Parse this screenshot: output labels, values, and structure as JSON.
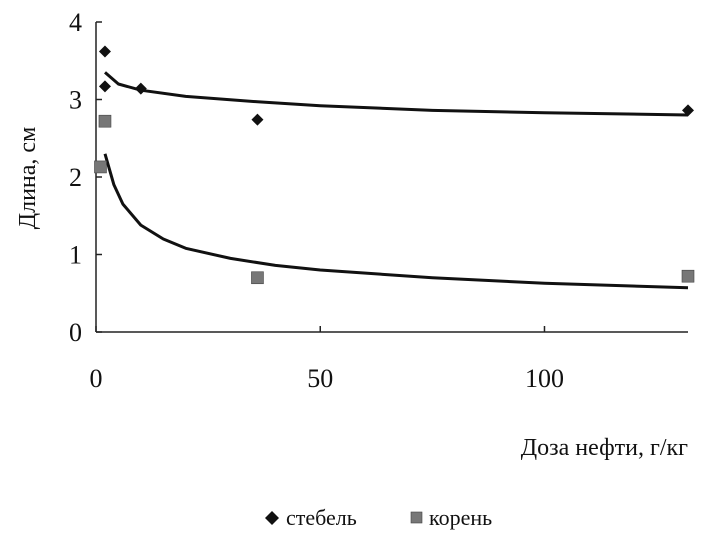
{
  "chart_data": {
    "type": "scatter",
    "xlabel": "Доза нефти, г/кг",
    "ylabel": "Длина, см",
    "xlim": [
      0,
      132
    ],
    "ylim": [
      0,
      4
    ],
    "x_ticks": [
      "0",
      "50",
      "100"
    ],
    "y_ticks": [
      "0",
      "1",
      "2",
      "3",
      "4"
    ],
    "grid": false,
    "legend_position": "bottom",
    "series": [
      {
        "name": "стебель",
        "marker": "diamond",
        "color": "#111111",
        "points": [
          [
            2,
            3.62
          ],
          [
            2,
            3.17
          ],
          [
            10,
            3.14
          ],
          [
            36,
            2.74
          ],
          [
            132,
            2.86
          ]
        ],
        "trend": [
          [
            2,
            3.35
          ],
          [
            5,
            3.2
          ],
          [
            10,
            3.12
          ],
          [
            20,
            3.04
          ],
          [
            36,
            2.97
          ],
          [
            50,
            2.92
          ],
          [
            75,
            2.86
          ],
          [
            100,
            2.83
          ],
          [
            132,
            2.8
          ]
        ]
      },
      {
        "name": "корень",
        "marker": "square",
        "color": "#777777",
        "points": [
          [
            2,
            2.72
          ],
          [
            1,
            2.13
          ],
          [
            36,
            0.7
          ],
          [
            132,
            0.72
          ]
        ],
        "trend": [
          [
            2,
            2.3
          ],
          [
            4,
            1.9
          ],
          [
            6,
            1.65
          ],
          [
            10,
            1.38
          ],
          [
            15,
            1.2
          ],
          [
            20,
            1.08
          ],
          [
            30,
            0.95
          ],
          [
            40,
            0.86
          ],
          [
            50,
            0.8
          ],
          [
            75,
            0.7
          ],
          [
            100,
            0.63
          ],
          [
            132,
            0.57
          ]
        ]
      }
    ]
  }
}
